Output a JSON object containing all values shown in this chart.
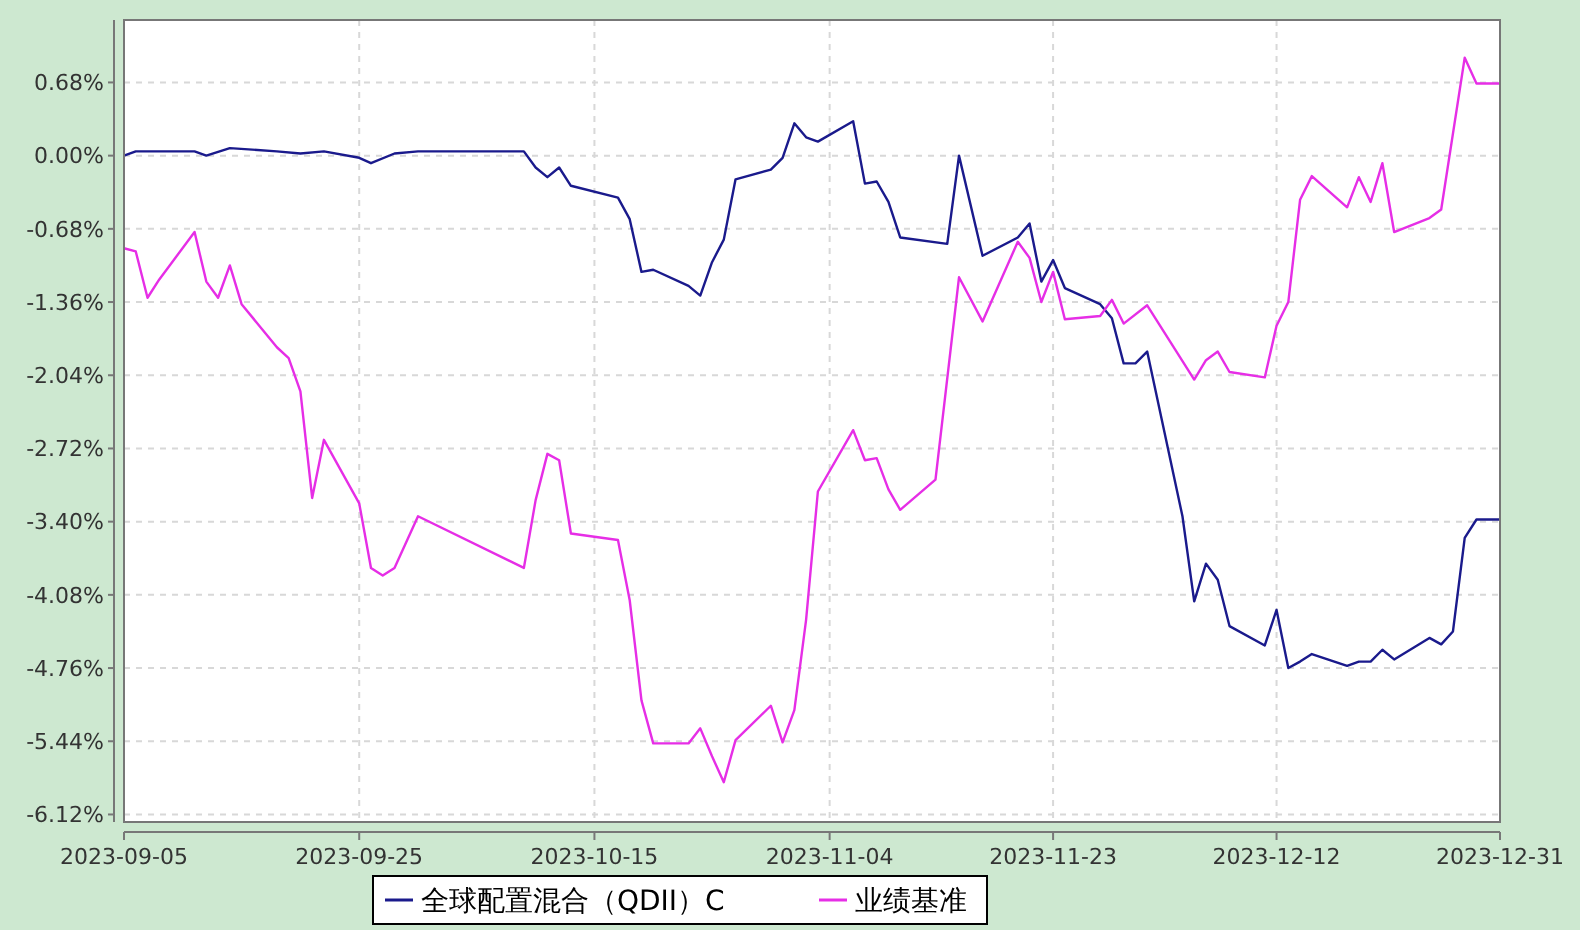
{
  "chart_data": {
    "type": "line",
    "xlim": [
      "2023-09-05",
      "2023-12-31"
    ],
    "xticks": [
      "2023-09-05",
      "2023-09-25",
      "2023-10-15",
      "2023-11-04",
      "2023-11-23",
      "2023-12-12",
      "2023-12-31"
    ],
    "ylim": [
      -6.19,
      1.26
    ],
    "yticks": [
      {
        "value": -6.12,
        "label": "-6.12%"
      },
      {
        "value": -5.44,
        "label": "-5.44%"
      },
      {
        "value": -4.76,
        "label": "-4.76%"
      },
      {
        "value": -4.08,
        "label": "-4.08%"
      },
      {
        "value": -3.4,
        "label": "-3.40%"
      },
      {
        "value": -2.72,
        "label": "-2.72%"
      },
      {
        "value": -2.04,
        "label": "-2.04%"
      },
      {
        "value": -1.36,
        "label": "-1.36%"
      },
      {
        "value": -0.68,
        "label": "-0.68%"
      },
      {
        "value": 0,
        "label": "0.00%"
      },
      {
        "value": 0.68,
        "label": "0.68%"
      }
    ],
    "grid": true,
    "legend": "bottom",
    "marker": "none",
    "line_style": "solid",
    "series": [
      {
        "name": "全球配置混合（QDII）C",
        "color": "#1a1a8c",
        "x": [
          "2023-09-05",
          "2023-09-06",
          "2023-09-11",
          "2023-09-12",
          "2023-09-14",
          "2023-09-18",
          "2023-09-20",
          "2023-09-22",
          "2023-09-25",
          "2023-09-26",
          "2023-09-28",
          "2023-09-30",
          "2023-10-09",
          "2023-10-10",
          "2023-10-11",
          "2023-10-12",
          "2023-10-13",
          "2023-10-17",
          "2023-10-18",
          "2023-10-19",
          "2023-10-20",
          "2023-10-23",
          "2023-10-24",
          "2023-10-25",
          "2023-10-26",
          "2023-10-27",
          "2023-10-30",
          "2023-10-31",
          "2023-11-01",
          "2023-11-02",
          "2023-11-03",
          "2023-11-06",
          "2023-11-07",
          "2023-11-08",
          "2023-11-09",
          "2023-11-10",
          "2023-11-14",
          "2023-11-15",
          "2023-11-17",
          "2023-11-20",
          "2023-11-21",
          "2023-11-22",
          "2023-11-23",
          "2023-11-24",
          "2023-11-27",
          "2023-11-28",
          "2023-11-29",
          "2023-11-30",
          "2023-12-01",
          "2023-12-04",
          "2023-12-05",
          "2023-12-06",
          "2023-12-07",
          "2023-12-08",
          "2023-12-11",
          "2023-12-12",
          "2023-12-13",
          "2023-12-14",
          "2023-12-15",
          "2023-12-18",
          "2023-12-19",
          "2023-12-20",
          "2023-12-21",
          "2023-12-22",
          "2023-12-25",
          "2023-12-26",
          "2023-12-27",
          "2023-12-28",
          "2023-12-29",
          "2023-12-31"
        ],
        "values": [
          0,
          0.04,
          0.04,
          0,
          0.07,
          0.04,
          0.02,
          0.04,
          -0.02,
          -0.07,
          0.02,
          0.04,
          0.04,
          -0.11,
          -0.2,
          -0.11,
          -0.28,
          -0.39,
          -0.59,
          -1.08,
          -1.06,
          -1.21,
          -1.3,
          -0.99,
          -0.78,
          -0.22,
          -0.13,
          -0.02,
          0.3,
          0.17,
          0.13,
          0.32,
          -0.26,
          -0.24,
          -0.43,
          -0.76,
          -0.82,
          0,
          -0.93,
          -0.76,
          -0.63,
          -1.17,
          -0.97,
          -1.23,
          -1.38,
          -1.51,
          -1.93,
          -1.93,
          -1.82,
          -3.35,
          -4.14,
          -3.79,
          -3.94,
          -4.37,
          -4.55,
          -4.22,
          -4.76,
          -4.7,
          -4.63,
          -4.74,
          -4.7,
          -4.7,
          -4.59,
          -4.68,
          -4.48,
          -4.54,
          -4.42,
          -3.55,
          -3.38,
          -3.38
        ]
      },
      {
        "name": "业绩基准",
        "color": "#e62ee6",
        "x": [
          "2023-09-05",
          "2023-09-06",
          "2023-09-07",
          "2023-09-08",
          "2023-09-11",
          "2023-09-12",
          "2023-09-13",
          "2023-09-14",
          "2023-09-15",
          "2023-09-18",
          "2023-09-19",
          "2023-09-20",
          "2023-09-21",
          "2023-09-22",
          "2023-09-25",
          "2023-09-26",
          "2023-09-27",
          "2023-09-28",
          "2023-09-30",
          "2023-10-09",
          "2023-10-10",
          "2023-10-11",
          "2023-10-12",
          "2023-10-13",
          "2023-10-17",
          "2023-10-18",
          "2023-10-19",
          "2023-10-20",
          "2023-10-23",
          "2023-10-24",
          "2023-10-25",
          "2023-10-26",
          "2023-10-27",
          "2023-10-30",
          "2023-10-31",
          "2023-11-01",
          "2023-11-02",
          "2023-11-03",
          "2023-11-06",
          "2023-11-07",
          "2023-11-08",
          "2023-11-09",
          "2023-11-10",
          "2023-11-13",
          "2023-11-15",
          "2023-11-17",
          "2023-11-20",
          "2023-11-21",
          "2023-11-22",
          "2023-11-23",
          "2023-11-24",
          "2023-11-27",
          "2023-11-28",
          "2023-11-29",
          "2023-12-01",
          "2023-12-05",
          "2023-12-06",
          "2023-12-07",
          "2023-12-08",
          "2023-12-11",
          "2023-12-12",
          "2023-12-13",
          "2023-12-14",
          "2023-12-15",
          "2023-12-18",
          "2023-12-19",
          "2023-12-20",
          "2023-12-21",
          "2023-12-22",
          "2023-12-25",
          "2023-12-26",
          "2023-12-28",
          "2023-12-29",
          "2023-12-31"
        ],
        "values": [
          -0.86,
          -0.89,
          -1.32,
          -1.15,
          -0.71,
          -1.17,
          -1.32,
          -1.02,
          -1.38,
          -1.78,
          -1.88,
          -2.19,
          -3.18,
          -2.64,
          -3.23,
          -3.83,
          -3.9,
          -3.83,
          -3.35,
          -3.83,
          -3.2,
          -2.77,
          -2.83,
          -3.51,
          -3.57,
          -4.13,
          -5.06,
          -5.46,
          -5.46,
          -5.32,
          -5.58,
          -5.82,
          -5.43,
          -5.11,
          -5.45,
          -5.15,
          -4.31,
          -3.12,
          -2.55,
          -2.83,
          -2.81,
          -3.1,
          -3.29,
          -3.01,
          -1.13,
          -1.54,
          -0.8,
          -0.95,
          -1.36,
          -1.08,
          -1.52,
          -1.49,
          -1.34,
          -1.56,
          -1.39,
          -2.08,
          -1.9,
          -1.82,
          -2.01,
          -2.06,
          -1.58,
          -1.36,
          -0.41,
          -0.19,
          -0.48,
          -0.2,
          -0.43,
          -0.07,
          -0.71,
          -0.58,
          -0.5,
          0.91,
          0.67,
          0.67
        ]
      }
    ]
  }
}
